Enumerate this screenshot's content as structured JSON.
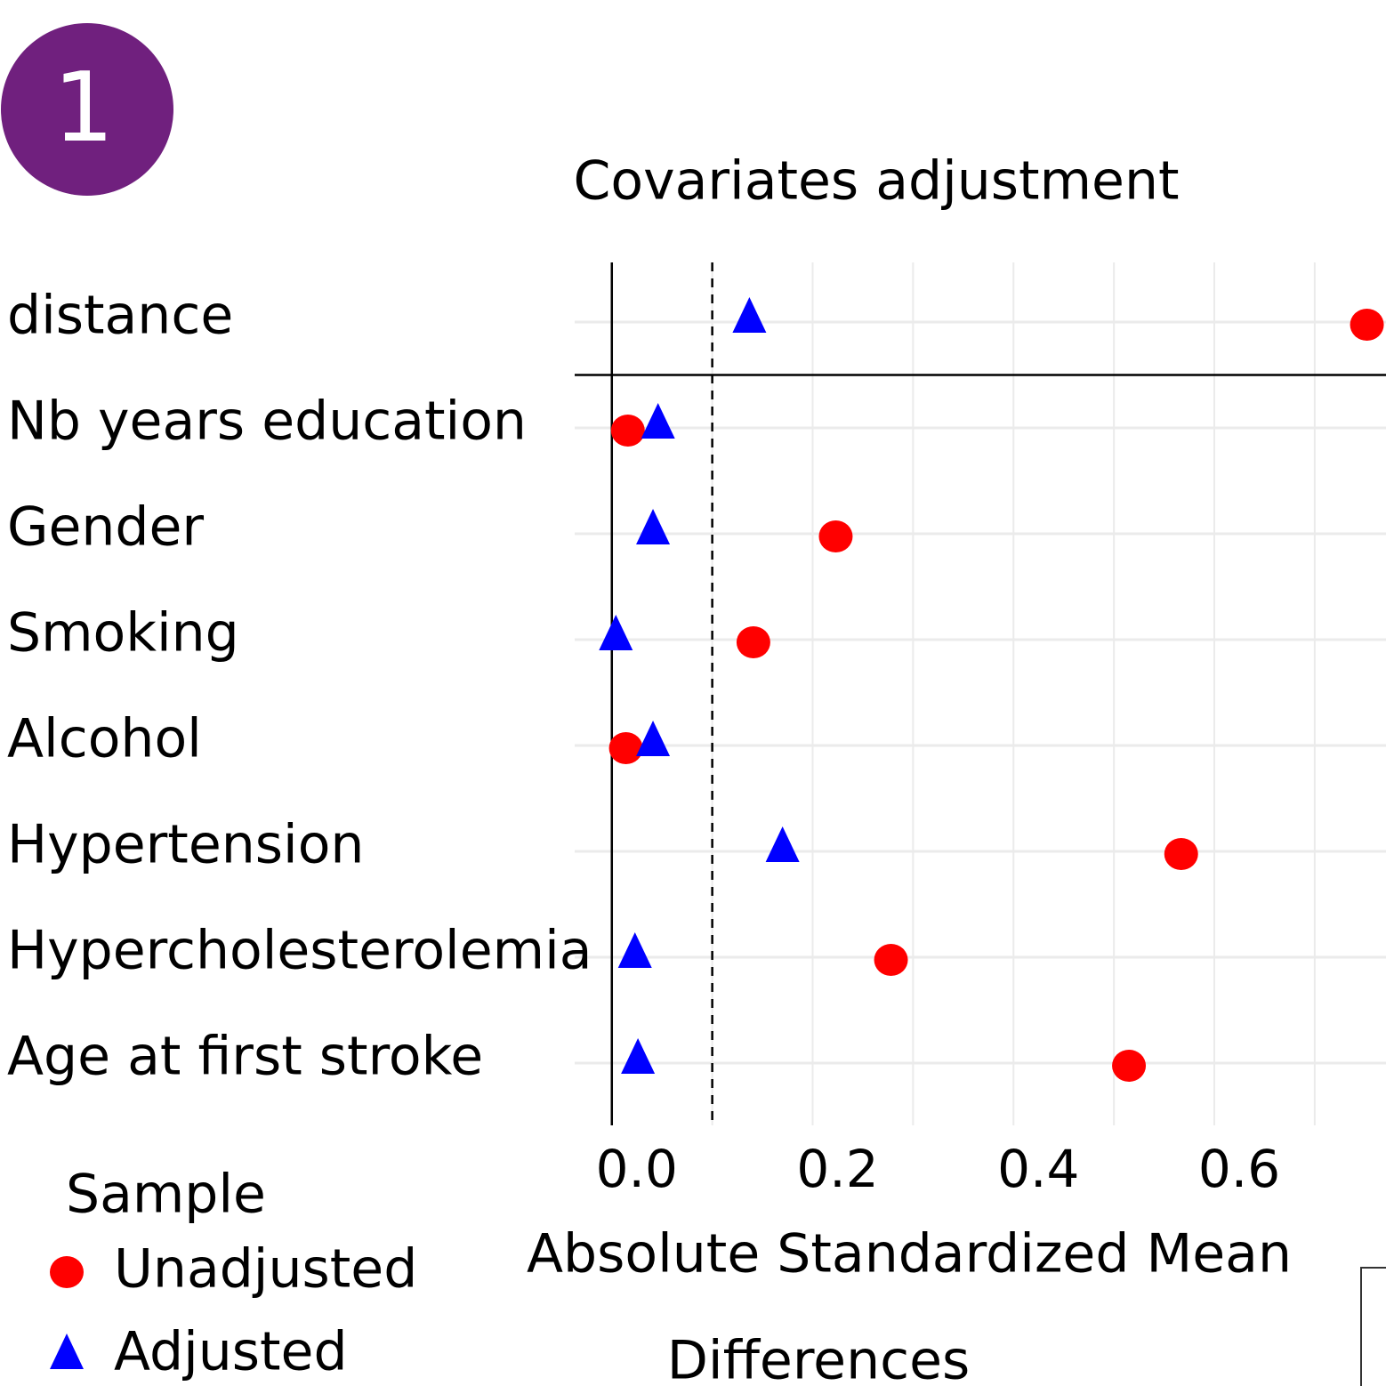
{
  "badge": "1",
  "chart_data": {
    "type": "dot",
    "title": "Covariates adjustment",
    "xlabel": [
      "Absolute Standardized Mean",
      "Differences"
    ],
    "legend_title": "Sample",
    "categories": [
      "distance",
      "Nb years education",
      "Gender",
      "Smoking",
      "Alcohol",
      "Hypertension",
      "Hypercholesterolemia",
      "Age at first stroke"
    ],
    "series": [
      {
        "name": "Unadjusted",
        "color": "#ff0000",
        "marker": "circle",
        "values": [
          0.752,
          0.016,
          0.223,
          0.141,
          0.014,
          0.567,
          0.278,
          0.515
        ]
      },
      {
        "name": "Adjusted",
        "color": "#0000ff",
        "marker": "triangle",
        "values": [
          0.137,
          0.046,
          0.041,
          0.004,
          0.041,
          0.17,
          0.023,
          0.026
        ]
      }
    ],
    "xlim": [
      -0.037,
      0.771
    ],
    "xticks": [
      {
        "value": 0,
        "label": "0.0"
      },
      0.2,
      0.4,
      0.6
    ],
    "minor_xticks": [
      0.1,
      0.3,
      0.5,
      0.7
    ],
    "threshold": 0.1,
    "grid": true
  }
}
